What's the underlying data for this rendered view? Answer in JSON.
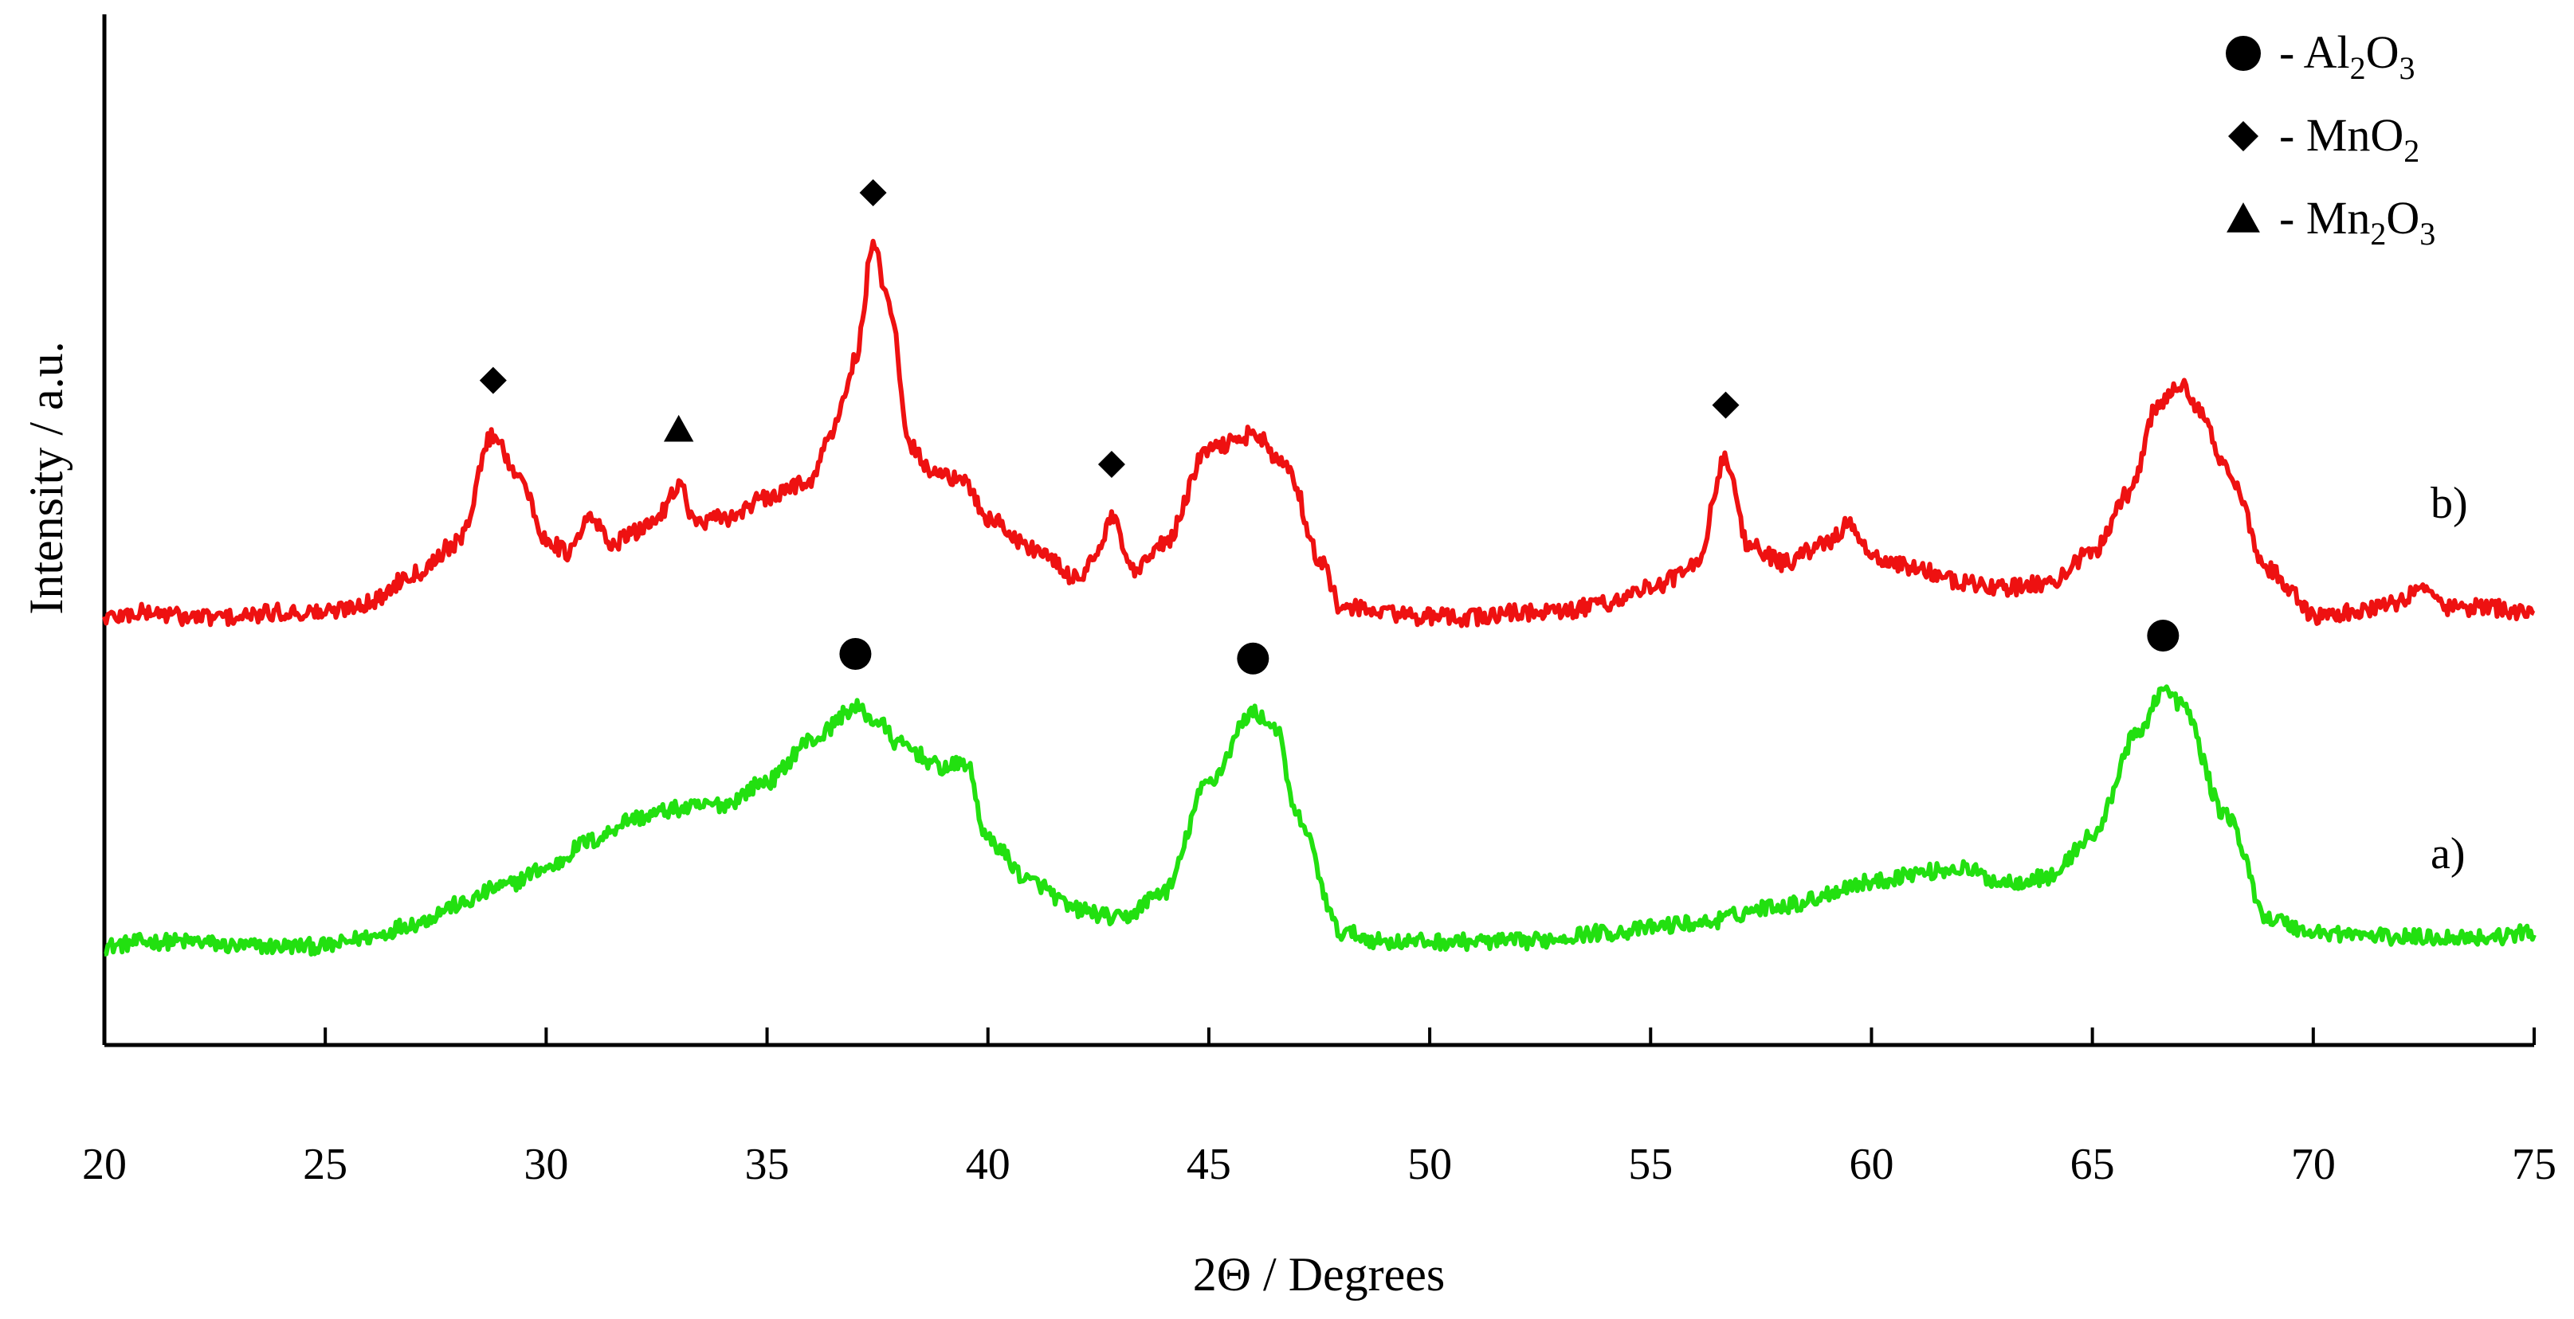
{
  "chart_data": {
    "type": "line",
    "title": "",
    "xlabel": "2Θ / Degrees",
    "ylabel": "Intensity / a.u.",
    "xlim": [
      20,
      75
    ],
    "xticks": [
      20,
      25,
      30,
      35,
      40,
      45,
      50,
      55,
      60,
      65,
      70,
      75
    ],
    "y_ticks_shown": false,
    "grid": false,
    "series": [
      {
        "name": "a)",
        "color": "#22e010",
        "points": [
          [
            20,
            0.0
          ],
          [
            21,
            0.01
          ],
          [
            22,
            0.01
          ],
          [
            23,
            0.0
          ],
          [
            24,
            0.0
          ],
          [
            25,
            0.0
          ],
          [
            26,
            0.02
          ],
          [
            27,
            0.05
          ],
          [
            28,
            0.09
          ],
          [
            29,
            0.13
          ],
          [
            30,
            0.17
          ],
          [
            31,
            0.23
          ],
          [
            32,
            0.28
          ],
          [
            33,
            0.3
          ],
          [
            34,
            0.31
          ],
          [
            35,
            0.36
          ],
          [
            36,
            0.45
          ],
          [
            37,
            0.52
          ],
          [
            37.5,
            0.49
          ],
          [
            38,
            0.44
          ],
          [
            39,
            0.39
          ],
          [
            39.5,
            0.4
          ],
          [
            40,
            0.23
          ],
          [
            41,
            0.14
          ],
          [
            42,
            0.08
          ],
          [
            43,
            0.06
          ],
          [
            44,
            0.12
          ],
          [
            45,
            0.36
          ],
          [
            46,
            0.51
          ],
          [
            46.5,
            0.48
          ],
          [
            47,
            0.28
          ],
          [
            48,
            0.03
          ],
          [
            49,
            0.01
          ],
          [
            50,
            0.01
          ],
          [
            52,
            0.01
          ],
          [
            54,
            0.03
          ],
          [
            56,
            0.05
          ],
          [
            58,
            0.09
          ],
          [
            60,
            0.14
          ],
          [
            61,
            0.16
          ],
          [
            62,
            0.17
          ],
          [
            63,
            0.14
          ],
          [
            64,
            0.15
          ],
          [
            65,
            0.24
          ],
          [
            66,
            0.46
          ],
          [
            66.6,
            0.56
          ],
          [
            67,
            0.53
          ],
          [
            68,
            0.29
          ],
          [
            69,
            0.06
          ],
          [
            70,
            0.03
          ],
          [
            72,
            0.02
          ],
          [
            74,
            0.02
          ],
          [
            75,
            0.03
          ]
        ]
      },
      {
        "name": "b)",
        "color": "#ee1111",
        "points": [
          [
            20,
            0.0
          ],
          [
            21,
            0.01
          ],
          [
            22,
            0.0
          ],
          [
            23,
            0.0
          ],
          [
            24,
            0.01
          ],
          [
            25,
            0.01
          ],
          [
            26,
            0.03
          ],
          [
            27,
            0.09
          ],
          [
            28,
            0.15
          ],
          [
            28.8,
            0.37
          ],
          [
            29.3,
            0.3
          ],
          [
            30,
            0.16
          ],
          [
            30.5,
            0.13
          ],
          [
            31,
            0.2
          ],
          [
            31.5,
            0.15
          ],
          [
            32,
            0.17
          ],
          [
            32.5,
            0.2
          ],
          [
            33,
            0.27
          ],
          [
            33.4,
            0.19
          ],
          [
            34,
            0.2
          ],
          [
            35,
            0.24
          ],
          [
            36,
            0.28
          ],
          [
            36.5,
            0.38
          ],
          [
            37,
            0.52
          ],
          [
            37.4,
            0.75
          ],
          [
            37.8,
            0.62
          ],
          [
            38.2,
            0.35
          ],
          [
            38.7,
            0.3
          ],
          [
            39.5,
            0.27
          ],
          [
            40,
            0.2
          ],
          [
            41,
            0.14
          ],
          [
            42,
            0.08
          ],
          [
            42.5,
            0.13
          ],
          [
            42.8,
            0.2
          ],
          [
            43.3,
            0.09
          ],
          [
            44,
            0.15
          ],
          [
            45,
            0.34
          ],
          [
            46,
            0.37
          ],
          [
            46.8,
            0.3
          ],
          [
            47.5,
            0.12
          ],
          [
            48,
            0.02
          ],
          [
            49,
            0.01
          ],
          [
            50,
            0.0
          ],
          [
            51,
            0.0
          ],
          [
            52,
            0.01
          ],
          [
            53,
            0.01
          ],
          [
            54,
            0.03
          ],
          [
            55,
            0.06
          ],
          [
            56,
            0.1
          ],
          [
            56.7,
            0.32
          ],
          [
            57.2,
            0.15
          ],
          [
            58,
            0.11
          ],
          [
            59,
            0.15
          ],
          [
            59.5,
            0.19
          ],
          [
            60,
            0.12
          ],
          [
            61,
            0.1
          ],
          [
            62,
            0.07
          ],
          [
            63,
            0.06
          ],
          [
            64,
            0.07
          ],
          [
            65,
            0.13
          ],
          [
            65.8,
            0.25
          ],
          [
            66.5,
            0.43
          ],
          [
            67,
            0.47
          ],
          [
            67.5,
            0.42
          ],
          [
            68,
            0.3
          ],
          [
            69,
            0.1
          ],
          [
            69.5,
            0.05
          ],
          [
            70,
            0.0
          ],
          [
            71,
            0.01
          ],
          [
            72,
            0.03
          ],
          [
            72.5,
            0.07
          ],
          [
            73,
            0.02
          ],
          [
            74,
            0.02
          ],
          [
            75,
            0.01
          ]
        ]
      }
    ],
    "legend": {
      "position": "top-right",
      "entries": [
        {
          "marker": "circle",
          "label": "- Al",
          "s1": "2",
          "mid": "O",
          "s2": "3"
        },
        {
          "marker": "diamond",
          "label": "- MnO",
          "s1": "2",
          "mid": "",
          "s2": ""
        },
        {
          "marker": "triangle",
          "label": "- Mn",
          "s1": "2",
          "mid": "O",
          "s2": "3"
        }
      ]
    },
    "annotations": [
      {
        "series": "b)",
        "marker": "diamond",
        "x": 28.8
      },
      {
        "series": "b)",
        "marker": "triangle",
        "x": 33.0
      },
      {
        "series": "b)",
        "marker": "diamond",
        "x": 37.4
      },
      {
        "series": "b)",
        "marker": "diamond",
        "x": 42.8
      },
      {
        "series": "b)",
        "marker": "diamond",
        "x": 56.7
      },
      {
        "series": "a)",
        "marker": "circle",
        "x": 37.0
      },
      {
        "series": "a)",
        "marker": "circle",
        "x": 46.0
      },
      {
        "series": "a)",
        "marker": "circle",
        "x": 66.6
      }
    ]
  }
}
